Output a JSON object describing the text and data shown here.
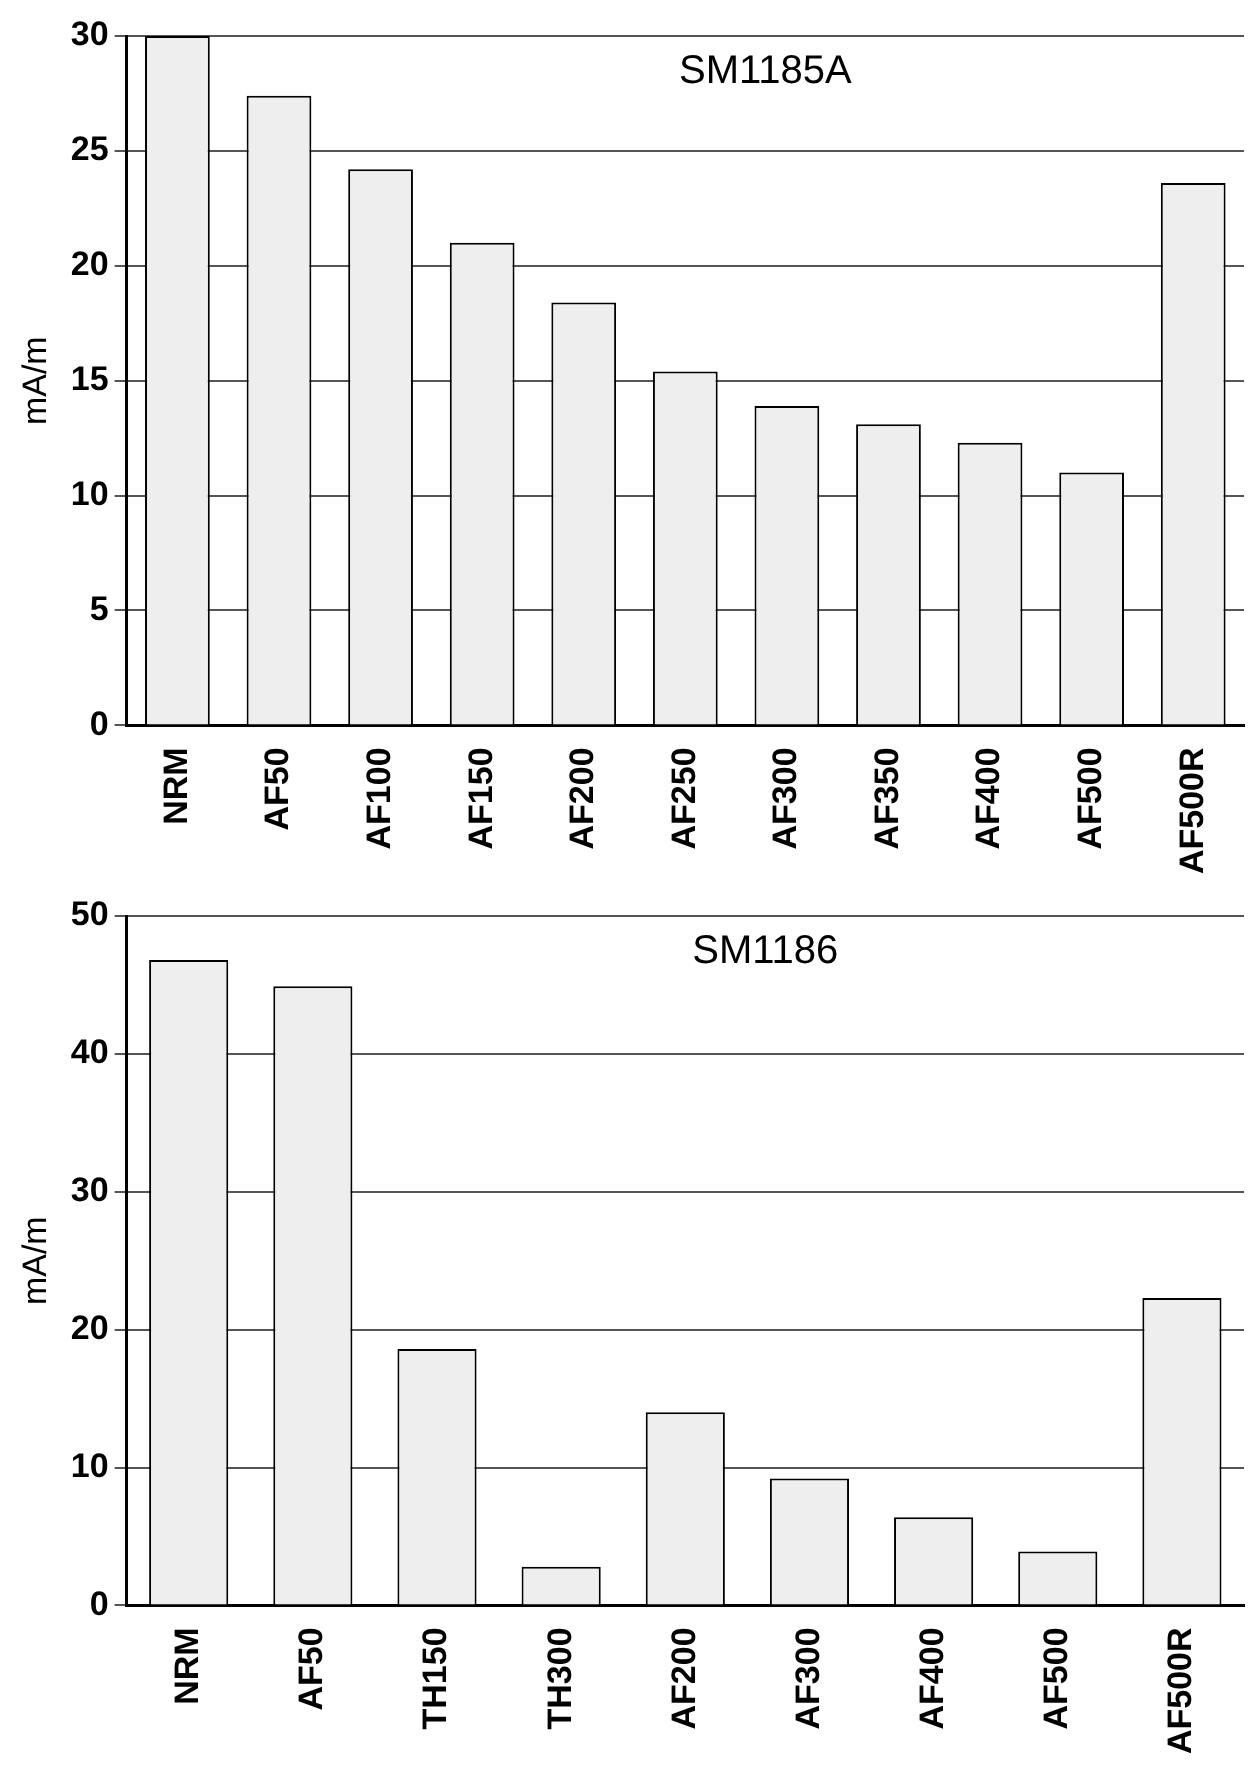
{
  "chart_data": [
    {
      "type": "bar",
      "title": "SM1185A",
      "ylabel": "mA/m",
      "categories": [
        "NRM",
        "AF50",
        "AF100",
        "AF150",
        "AF200",
        "AF250",
        "AF300",
        "AF350",
        "AF400",
        "AF500",
        "AF500R"
      ],
      "values": [
        30.0,
        27.4,
        24.2,
        21.0,
        18.4,
        15.4,
        13.9,
        13.1,
        12.3,
        11.0,
        23.6
      ],
      "color": "#eeeeee",
      "ylim": [
        0,
        30
      ],
      "yticks": [
        0,
        5,
        10,
        15,
        20,
        25,
        30
      ],
      "grid": "y",
      "legend": false
    },
    {
      "type": "bar",
      "title": "SM1186",
      "ylabel": "mA/m",
      "categories": [
        "NRM",
        "AF50",
        "TH150",
        "TH300",
        "AF200",
        "AF300",
        "AF400",
        "AF500",
        "AF500R"
      ],
      "values": [
        46.8,
        44.9,
        18.6,
        2.8,
        14.0,
        9.2,
        6.4,
        3.9,
        22.3
      ],
      "color": "#eeeeee",
      "ylim": [
        0,
        50
      ],
      "yticks": [
        0,
        10,
        20,
        30,
        40,
        50
      ],
      "grid": "y",
      "legend": false
    }
  ]
}
